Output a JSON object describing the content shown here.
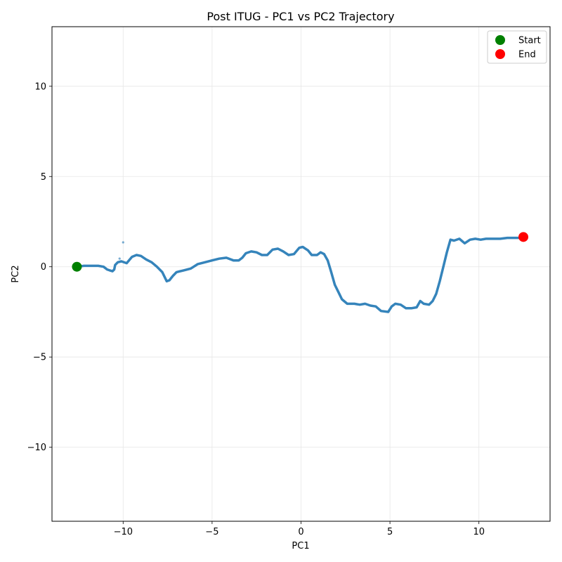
{
  "chart_data": {
    "type": "line",
    "title": "Post ITUG - PC1 vs PC2 Trajectory",
    "xlabel": "PC1",
    "ylabel": "PC2",
    "xlim": [
      -14,
      14
    ],
    "ylim": [
      -14.1,
      13.3
    ],
    "xticks": [
      -10,
      -5,
      0,
      5,
      10
    ],
    "yticks": [
      -10,
      -5,
      0,
      5,
      10
    ],
    "xtick_labels": [
      "−10",
      "−5",
      "0",
      "5",
      "10"
    ],
    "ytick_labels": [
      "−10",
      "−5",
      "0",
      "5",
      "10"
    ],
    "grid": true,
    "legend_position": "top-right",
    "series": [
      {
        "color": "#1f77b4",
        "x": [
          -12.6,
          -12.2,
          -11.8,
          -11.4,
          -11.1,
          -10.9,
          -10.75,
          -10.6,
          -10.5,
          -10.45,
          -10.3,
          -10.1,
          -9.8,
          -9.5,
          -9.25,
          -9.0,
          -8.7,
          -8.4,
          -8.1,
          -7.8,
          -7.55,
          -7.4,
          -7.2,
          -7.0,
          -6.6,
          -6.2,
          -5.8,
          -5.4,
          -5.0,
          -4.6,
          -4.2,
          -3.8,
          -3.5,
          -3.3,
          -3.1,
          -2.8,
          -2.5,
          -2.2,
          -1.9,
          -1.6,
          -1.3,
          -1.0,
          -0.7,
          -0.4,
          -0.1,
          0.1,
          0.4,
          0.6,
          0.9,
          1.1,
          1.3,
          1.5,
          1.7,
          1.9,
          2.1,
          2.3,
          2.6,
          3.0,
          3.3,
          3.6,
          3.9,
          4.2,
          4.5,
          4.9,
          5.1,
          5.3,
          5.6,
          5.9,
          6.2,
          6.5,
          6.7,
          6.9,
          7.2,
          7.4,
          7.6,
          7.8,
          8.0,
          8.2,
          8.4,
          8.6,
          8.9,
          9.2,
          9.5,
          9.8,
          10.1,
          10.4,
          10.8,
          11.2,
          11.6,
          12.0,
          12.4,
          12.6
        ],
        "y": [
          0.0,
          0.05,
          0.05,
          0.05,
          0.0,
          -0.15,
          -0.2,
          -0.25,
          -0.15,
          0.1,
          0.25,
          0.3,
          0.2,
          0.55,
          0.65,
          0.6,
          0.4,
          0.25,
          0.0,
          -0.3,
          -0.8,
          -0.75,
          -0.5,
          -0.3,
          -0.2,
          -0.1,
          0.15,
          0.25,
          0.35,
          0.45,
          0.5,
          0.35,
          0.35,
          0.5,
          0.75,
          0.85,
          0.8,
          0.65,
          0.65,
          0.95,
          1.0,
          0.85,
          0.65,
          0.7,
          1.05,
          1.1,
          0.9,
          0.65,
          0.65,
          0.8,
          0.7,
          0.35,
          -0.3,
          -1.0,
          -1.4,
          -1.8,
          -2.05,
          -2.05,
          -2.1,
          -2.05,
          -2.15,
          -2.2,
          -2.45,
          -2.5,
          -2.2,
          -2.05,
          -2.1,
          -2.3,
          -2.3,
          -2.25,
          -1.9,
          -2.05,
          -2.1,
          -1.9,
          -1.5,
          -0.8,
          0.0,
          0.8,
          1.5,
          1.45,
          1.55,
          1.3,
          1.5,
          1.55,
          1.5,
          1.55,
          1.55,
          1.55,
          1.6,
          1.6,
          1.6,
          1.6
        ]
      }
    ],
    "outlier_points": [
      {
        "x": -10.0,
        "y": 1.35
      },
      {
        "x": -10.2,
        "y": 0.45
      }
    ],
    "markers": [
      {
        "name": "Start",
        "x": -12.6,
        "y": 0.0,
        "color": "#008000"
      },
      {
        "name": "End",
        "x": 12.5,
        "y": 1.65,
        "color": "#ff0000"
      }
    ],
    "legend": [
      {
        "label": "Start",
        "color": "#008000"
      },
      {
        "label": "End",
        "color": "#ff0000"
      }
    ]
  }
}
